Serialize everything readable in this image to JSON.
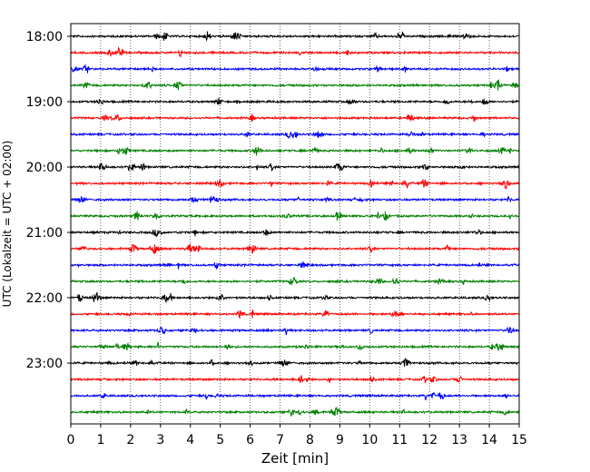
{
  "chart_data": {
    "type": "line",
    "title": "",
    "xlabel": "Zeit  [min]",
    "ylabel": "UTC (Lokalzeit = UTC + 02:00)",
    "xlim": [
      0,
      15
    ],
    "x_ticks": [
      0,
      1,
      2,
      3,
      4,
      5,
      6,
      7,
      8,
      9,
      10,
      11,
      12,
      13,
      14,
      15
    ],
    "y_tick_labels": [
      "18:00",
      "19:00",
      "20:00",
      "21:00",
      "22:00",
      "23:00"
    ],
    "trace_interval_minutes": 15,
    "grid": "vertical dotted",
    "colors": [
      "#000000",
      "#ff0000",
      "#0000ff",
      "#008000"
    ],
    "series": [
      {
        "start": "18:00",
        "color": "#000000"
      },
      {
        "start": "18:15",
        "color": "#ff0000"
      },
      {
        "start": "18:30",
        "color": "#0000ff"
      },
      {
        "start": "18:45",
        "color": "#008000"
      },
      {
        "start": "19:00",
        "color": "#000000"
      },
      {
        "start": "19:15",
        "color": "#ff0000"
      },
      {
        "start": "19:30",
        "color": "#0000ff"
      },
      {
        "start": "19:45",
        "color": "#008000"
      },
      {
        "start": "20:00",
        "color": "#000000"
      },
      {
        "start": "20:15",
        "color": "#ff0000"
      },
      {
        "start": "20:30",
        "color": "#0000ff"
      },
      {
        "start": "20:45",
        "color": "#008000"
      },
      {
        "start": "21:00",
        "color": "#000000"
      },
      {
        "start": "21:15",
        "color": "#ff0000"
      },
      {
        "start": "21:30",
        "color": "#0000ff"
      },
      {
        "start": "21:45",
        "color": "#008000"
      },
      {
        "start": "22:00",
        "color": "#000000"
      },
      {
        "start": "22:15",
        "color": "#ff0000"
      },
      {
        "start": "22:30",
        "color": "#0000ff"
      },
      {
        "start": "22:45",
        "color": "#008000"
      },
      {
        "start": "23:00",
        "color": "#000000"
      },
      {
        "start": "23:15",
        "color": "#ff0000"
      },
      {
        "start": "23:30",
        "color": "#0000ff"
      },
      {
        "start": "23:45",
        "color": "#008000"
      }
    ]
  }
}
